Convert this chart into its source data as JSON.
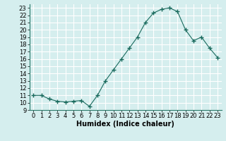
{
  "x": [
    0,
    1,
    2,
    3,
    4,
    5,
    6,
    7,
    8,
    9,
    10,
    11,
    12,
    13,
    14,
    15,
    16,
    17,
    18,
    19,
    20,
    21,
    22,
    23
  ],
  "y": [
    11,
    11,
    10.5,
    10.2,
    10.1,
    10.2,
    10.3,
    9.5,
    11,
    13,
    14.5,
    16,
    17.5,
    19,
    21,
    22.3,
    22.8,
    23,
    22.5,
    20,
    18.5,
    19,
    17.5,
    16.2
  ],
  "line_color": "#1a6b5e",
  "marker": "+",
  "marker_size": 4,
  "background_color": "#d5eeee",
  "grid_color": "#b8d8d8",
  "xlabel": "Humidex (Indice chaleur)",
  "ylabel": "",
  "title": "",
  "xlim": [
    -0.5,
    23.5
  ],
  "ylim": [
    9,
    23.5
  ],
  "yticks": [
    9,
    10,
    11,
    12,
    13,
    14,
    15,
    16,
    17,
    18,
    19,
    20,
    21,
    22,
    23
  ],
  "xticks": [
    0,
    1,
    2,
    3,
    4,
    5,
    6,
    7,
    8,
    9,
    10,
    11,
    12,
    13,
    14,
    15,
    16,
    17,
    18,
    19,
    20,
    21,
    22,
    23
  ],
  "tick_fontsize": 6,
  "xlabel_fontsize": 7
}
